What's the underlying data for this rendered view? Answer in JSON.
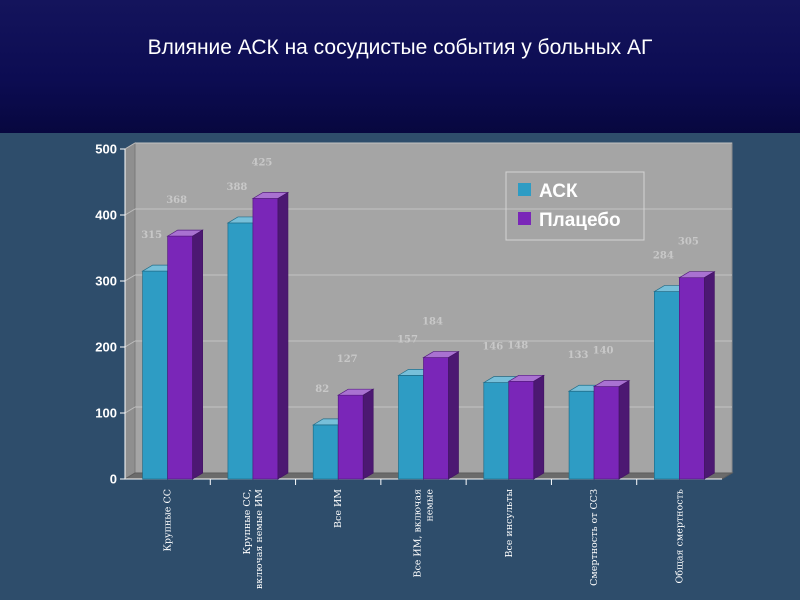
{
  "slide": {
    "title": "Влияние АСК на сосудистые события у больных АГ"
  },
  "colors": {
    "series_1": "#2e9cc4",
    "series_2": "#7a26b8",
    "plot_bg": "#a5a5a5",
    "header_bg": "#0c0c52",
    "body_bg": "#2e4d6b"
  },
  "chart_data": {
    "type": "bar",
    "title": "",
    "xlabel": "",
    "ylabel": "",
    "ylim": [
      0,
      500
    ],
    "yticks": [
      0,
      100,
      200,
      300,
      400,
      500
    ],
    "grid": true,
    "legend_position": "top-right",
    "categories": [
      [
        "Крупные СС"
      ],
      [
        "Крупные СС,",
        "включая немые ИМ"
      ],
      [
        "Все ИМ"
      ],
      [
        "Все ИМ, включая",
        "немые"
      ],
      [
        "Все инсульты"
      ],
      [
        "Смертность от ССЗ"
      ],
      [
        "Общая смертность"
      ]
    ],
    "series": [
      {
        "name": "АСК",
        "color": "#2e9cc4",
        "values": [
          315,
          388,
          82,
          157,
          146,
          133,
          284
        ]
      },
      {
        "name": "Плацебо",
        "color": "#7a26b8",
        "values": [
          368,
          425,
          127,
          184,
          148,
          140,
          305
        ]
      }
    ]
  }
}
